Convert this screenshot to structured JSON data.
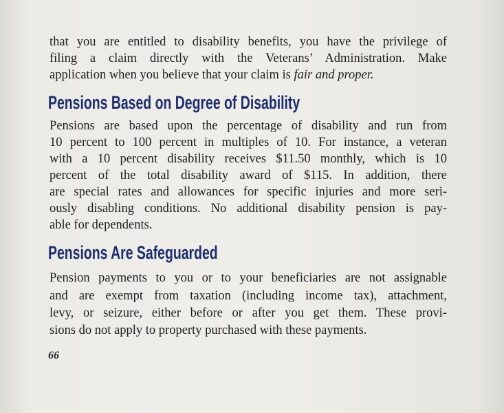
{
  "intro": {
    "lines": [
      "that you are entitled to disability benefits, you have the privilege of",
      "filing a claim directly with the Veterans’ Administration.  Make",
      "application when you believe that your claim is "
    ],
    "emphasis": "fair and proper."
  },
  "section1": {
    "heading": "Pensions Based on Degree of Disability",
    "lines": [
      "Pensions are based upon the percentage of disability and run from",
      "10 percent to 100 percent in multiples of 10.  For instance, a veteran",
      "with a 10 percent disability receives $11.50 monthly, which is 10",
      "percent of the total disability award of $115.  In addition, there",
      "are special rates and allowances for specific injuries and more seri-",
      "ously disabling conditions.  No additional disability pension is pay-",
      "able for dependents."
    ]
  },
  "section2": {
    "heading": "Pensions Are Safeguarded",
    "lines": [
      "Pension payments to you or to your beneficiaries are not assignable",
      "and are exempt from taxation (including income tax), attachment,",
      "levy, or seizure, either before or after you get them.  These provi-",
      "sions do not apply to property purchased with these payments."
    ]
  },
  "page_number": "66"
}
